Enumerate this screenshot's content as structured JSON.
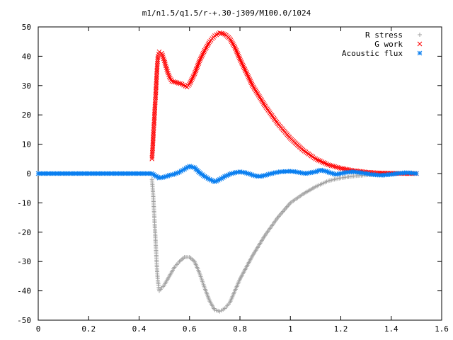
{
  "chart_data": {
    "type": "scatter",
    "title": "m1/n1.5/q1.5/r-+.30-j309/M100.0/1024",
    "xlabel": "",
    "ylabel": "",
    "xlim": [
      0,
      1.6
    ],
    "ylim": [
      -50,
      50
    ],
    "x_ticks": [
      "0",
      "0.2",
      "0.4",
      "0.6",
      "0.8",
      "1",
      "1.2",
      "1.4",
      "1.6"
    ],
    "y_ticks": [
      "50",
      "40",
      "30",
      "20",
      "10",
      "0",
      "-10",
      "-20",
      "-30",
      "-40",
      "-50"
    ],
    "grid": false,
    "legend_position": "top-right",
    "series": [
      {
        "name": "R stress",
        "marker": "plus",
        "color": "#a0a0a0",
        "points": [
          [
            0.451,
            -2
          ],
          [
            0.454,
            -5
          ],
          [
            0.457,
            -9
          ],
          [
            0.46,
            -14
          ],
          [
            0.463,
            -19
          ],
          [
            0.466,
            -24
          ],
          [
            0.469,
            -29
          ],
          [
            0.472,
            -34
          ],
          [
            0.475,
            -37
          ],
          [
            0.48,
            -40
          ],
          [
            0.49,
            -39
          ],
          [
            0.5,
            -38
          ],
          [
            0.52,
            -35
          ],
          [
            0.54,
            -32
          ],
          [
            0.56,
            -30
          ],
          [
            0.58,
            -28.5
          ],
          [
            0.6,
            -28.5
          ],
          [
            0.62,
            -30
          ],
          [
            0.64,
            -34
          ],
          [
            0.66,
            -39
          ],
          [
            0.68,
            -43.5
          ],
          [
            0.7,
            -46.5
          ],
          [
            0.72,
            -47
          ],
          [
            0.74,
            -46
          ],
          [
            0.76,
            -44
          ],
          [
            0.78,
            -40
          ],
          [
            0.8,
            -36
          ],
          [
            0.85,
            -28
          ],
          [
            0.9,
            -21
          ],
          [
            0.95,
            -15
          ],
          [
            1.0,
            -10
          ],
          [
            1.05,
            -7
          ],
          [
            1.1,
            -4.5
          ],
          [
            1.15,
            -2.5
          ],
          [
            1.2,
            -1.5
          ],
          [
            1.25,
            -0.9
          ],
          [
            1.3,
            -0.5
          ],
          [
            1.35,
            -0.2
          ],
          [
            1.4,
            0
          ],
          [
            1.45,
            0
          ],
          [
            1.5,
            0
          ]
        ]
      },
      {
        "name": "G work",
        "marker": "cross",
        "color": "#ff0000",
        "points": [
          [
            0.451,
            5
          ],
          [
            0.454,
            9
          ],
          [
            0.457,
            14
          ],
          [
            0.46,
            18
          ],
          [
            0.463,
            23
          ],
          [
            0.466,
            27
          ],
          [
            0.469,
            32
          ],
          [
            0.472,
            37
          ],
          [
            0.475,
            40
          ],
          [
            0.48,
            41.5
          ],
          [
            0.49,
            41
          ],
          [
            0.5,
            38.5
          ],
          [
            0.51,
            35.5
          ],
          [
            0.52,
            33
          ],
          [
            0.53,
            31.5
          ],
          [
            0.55,
            31
          ],
          [
            0.57,
            30.5
          ],
          [
            0.59,
            29.5
          ],
          [
            0.6,
            30.5
          ],
          [
            0.62,
            34
          ],
          [
            0.64,
            38.5
          ],
          [
            0.66,
            42
          ],
          [
            0.68,
            45
          ],
          [
            0.7,
            47
          ],
          [
            0.72,
            48
          ],
          [
            0.74,
            47.5
          ],
          [
            0.76,
            46
          ],
          [
            0.78,
            43
          ],
          [
            0.8,
            39
          ],
          [
            0.85,
            30
          ],
          [
            0.9,
            23
          ],
          [
            0.95,
            17
          ],
          [
            1.0,
            12
          ],
          [
            1.05,
            8
          ],
          [
            1.1,
            5
          ],
          [
            1.15,
            3
          ],
          [
            1.2,
            1.8
          ],
          [
            1.25,
            1
          ],
          [
            1.3,
            0.5
          ],
          [
            1.35,
            0.2
          ],
          [
            1.4,
            0.1
          ],
          [
            1.45,
            0
          ],
          [
            1.5,
            0
          ]
        ]
      },
      {
        "name": "Acoustic flux",
        "marker": "asterisk",
        "color": "#0a7ff0",
        "points": [
          [
            0.0,
            0
          ],
          [
            0.05,
            0
          ],
          [
            0.1,
            0
          ],
          [
            0.15,
            0
          ],
          [
            0.2,
            0
          ],
          [
            0.25,
            0
          ],
          [
            0.3,
            0
          ],
          [
            0.35,
            0
          ],
          [
            0.4,
            0
          ],
          [
            0.45,
            0
          ],
          [
            0.48,
            -1.5
          ],
          [
            0.5,
            -1.2
          ],
          [
            0.52,
            -0.6
          ],
          [
            0.54,
            -0.2
          ],
          [
            0.56,
            0.5
          ],
          [
            0.58,
            1.5
          ],
          [
            0.6,
            2.5
          ],
          [
            0.62,
            2
          ],
          [
            0.64,
            0.3
          ],
          [
            0.66,
            -1
          ],
          [
            0.68,
            -2
          ],
          [
            0.7,
            -2.8
          ],
          [
            0.72,
            -2
          ],
          [
            0.74,
            -1
          ],
          [
            0.76,
            -0.2
          ],
          [
            0.78,
            0.3
          ],
          [
            0.8,
            0.6
          ],
          [
            0.82,
            0.3
          ],
          [
            0.84,
            -0.2
          ],
          [
            0.86,
            -0.8
          ],
          [
            0.88,
            -1
          ],
          [
            0.9,
            -0.6
          ],
          [
            0.92,
            -0.1
          ],
          [
            0.94,
            0.3
          ],
          [
            0.96,
            0.6
          ],
          [
            0.98,
            0.7
          ],
          [
            1.0,
            0.8
          ],
          [
            1.02,
            0.6
          ],
          [
            1.04,
            0.3
          ],
          [
            1.06,
            0
          ],
          [
            1.08,
            0.3
          ],
          [
            1.1,
            0.6
          ],
          [
            1.12,
            1.2
          ],
          [
            1.14,
            0.8
          ],
          [
            1.16,
            0.2
          ],
          [
            1.18,
            -0.3
          ],
          [
            1.2,
            0
          ],
          [
            1.22,
            0.4
          ],
          [
            1.25,
            0.6
          ],
          [
            1.28,
            0.3
          ],
          [
            1.3,
            0
          ],
          [
            1.33,
            -0.4
          ],
          [
            1.36,
            -0.6
          ],
          [
            1.4,
            -0.3
          ],
          [
            1.43,
            0.1
          ],
          [
            1.46,
            0.3
          ],
          [
            1.48,
            0.2
          ],
          [
            1.5,
            0
          ]
        ]
      }
    ]
  }
}
